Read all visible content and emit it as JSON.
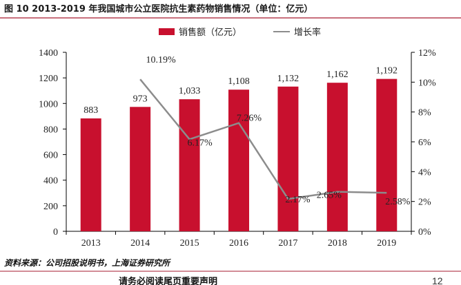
{
  "header": {
    "title": "图 10 2013-2019 年我国城市公立医院抗生素药物销售情况（单位：亿元）"
  },
  "chart_data": {
    "type": "bar",
    "categories": [
      "2013",
      "2014",
      "2015",
      "2016",
      "2017",
      "2018",
      "2019"
    ],
    "series": [
      {
        "name": "销售额（亿元）",
        "kind": "bar",
        "axis": "left",
        "values": [
          883,
          973,
          1033,
          1108,
          1132,
          1162,
          1192
        ],
        "labels": [
          "883",
          "973",
          "1,033",
          "1,108",
          "1,132",
          "1,162",
          "1,192"
        ]
      },
      {
        "name": "增长率",
        "kind": "line",
        "axis": "right",
        "values": [
          null,
          10.19,
          6.17,
          7.26,
          2.17,
          2.65,
          2.58
        ],
        "labels": [
          "",
          "10.19%",
          "6.17%",
          "7.26%",
          "2.17%",
          "2.65%",
          "2.58%"
        ]
      }
    ],
    "y_left": {
      "min": 0,
      "max": 1400,
      "ticks": [
        "0",
        "200",
        "400",
        "600",
        "800",
        "1000",
        "1200",
        "1400"
      ]
    },
    "y_right": {
      "min": 0,
      "max": 12,
      "ticks": [
        "0%",
        "2%",
        "4%",
        "6%",
        "8%",
        "10%",
        "12%"
      ]
    },
    "legend_position": "top",
    "grid": false
  },
  "colors": {
    "bar": "#c8102e",
    "line": "#8c8c8c",
    "axis": "#000000",
    "rule": "#a6192e"
  },
  "source": {
    "text": "资料来源：公司招股说明书，上海证券研究所"
  },
  "footer": {
    "disclaimer": "请务必阅读尾页重要声明",
    "page_number": "12"
  }
}
